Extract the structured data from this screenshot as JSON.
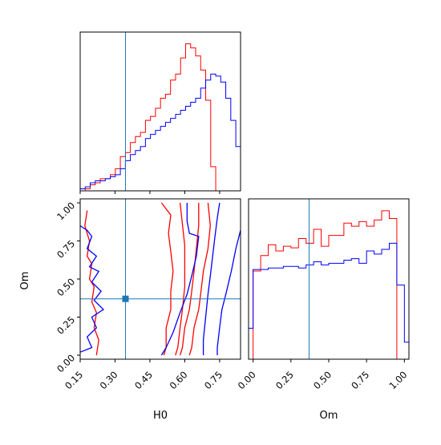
{
  "colors": {
    "red": "#ff0000",
    "blue": "#0000ff",
    "truth": "#1f77b4",
    "axis": "#000000"
  },
  "chart_data": [
    {
      "panel": "H0 marginal",
      "type": "histogram",
      "x_edges": [
        0.15,
        0.1716,
        0.1932,
        0.2148,
        0.2364,
        0.258,
        0.2796,
        0.3012,
        0.3228,
        0.3444,
        0.366,
        0.3876,
        0.4092,
        0.4308,
        0.4524,
        0.474,
        0.4956,
        0.5172,
        0.5388,
        0.5604,
        0.582,
        0.6036,
        0.6252,
        0.6468,
        0.6684,
        0.69,
        0.7116,
        0.7332,
        0.7548,
        0.7764,
        0.798,
        0.8196,
        0.8412,
        0.8628,
        0.8844,
        0.906
      ],
      "xlim": [
        0.15,
        0.84
      ],
      "truth": 0.345,
      "series": [
        {
          "color": "red",
          "counts": [
            0,
            1,
            3,
            4,
            6,
            6,
            8,
            11,
            17,
            19,
            24,
            27,
            29,
            35,
            37,
            41,
            46,
            48,
            55,
            58,
            66,
            73,
            71,
            67,
            60,
            45,
            12,
            0,
            0,
            0,
            0,
            0,
            0,
            0,
            0
          ]
        },
        {
          "color": "blue",
          "counts": [
            1,
            2,
            4,
            5,
            5,
            6,
            7,
            8,
            11,
            15,
            18,
            20,
            22,
            26,
            28,
            30,
            32,
            34,
            36,
            38,
            40,
            42,
            44,
            46,
            51,
            55,
            58,
            57,
            54,
            46,
            35,
            22,
            14,
            8,
            4
          ]
        }
      ]
    },
    {
      "panel": "Om vs H0 2D contours",
      "type": "contour",
      "xlabel": "H0",
      "ylabel": "Om",
      "xlim": [
        0.15,
        0.84
      ],
      "ylim": [
        0.0,
        1.0
      ],
      "xticks": [
        "0.15",
        "0.30",
        "0.45",
        "0.60",
        "0.75"
      ],
      "xtick_values": [
        0.15,
        0.3,
        0.45,
        0.6,
        0.75
      ],
      "yticks": [
        "0.00",
        "0.25",
        "0.50",
        "0.75",
        "1.00"
      ],
      "ytick_values": [
        0.0,
        0.25,
        0.5,
        0.75,
        1.0
      ],
      "truth": [
        0.345,
        0.37
      ],
      "contours": [
        {
          "color": "red",
          "points": [
            [
              0.5,
              1.0
            ],
            [
              0.54,
              0.92
            ],
            [
              0.53,
              0.8
            ],
            [
              0.54,
              0.68
            ],
            [
              0.55,
              0.55
            ],
            [
              0.54,
              0.42
            ],
            [
              0.54,
              0.3
            ],
            [
              0.52,
              0.18
            ],
            [
              0.52,
              0.05
            ],
            [
              0.51,
              0.0
            ]
          ]
        },
        {
          "color": "red",
          "points": [
            [
              0.58,
              1.0
            ],
            [
              0.59,
              0.86
            ],
            [
              0.6,
              0.72
            ],
            [
              0.6,
              0.58
            ],
            [
              0.6,
              0.45
            ],
            [
              0.59,
              0.3
            ],
            [
              0.58,
              0.18
            ],
            [
              0.57,
              0.05
            ],
            [
              0.56,
              0.0
            ]
          ]
        },
        {
          "color": "red",
          "points": [
            [
              0.66,
              1.0
            ],
            [
              0.66,
              0.85
            ],
            [
              0.65,
              0.7
            ],
            [
              0.64,
              0.55
            ],
            [
              0.63,
              0.42
            ],
            [
              0.62,
              0.3
            ],
            [
              0.6,
              0.18
            ],
            [
              0.59,
              0.05
            ],
            [
              0.58,
              0.0
            ]
          ]
        },
        {
          "color": "red",
          "points": [
            [
              0.7,
              1.0
            ],
            [
              0.71,
              0.85
            ],
            [
              0.7,
              0.7
            ],
            [
              0.68,
              0.55
            ],
            [
              0.67,
              0.42
            ],
            [
              0.66,
              0.3
            ],
            [
              0.64,
              0.18
            ],
            [
              0.63,
              0.05
            ],
            [
              0.62,
              0.0
            ]
          ]
        },
        {
          "color": "red",
          "points": [
            [
              0.18,
              0.95
            ],
            [
              0.17,
              0.85
            ],
            [
              0.19,
              0.75
            ],
            [
              0.18,
              0.65
            ],
            [
              0.2,
              0.6
            ],
            [
              0.19,
              0.5
            ],
            [
              0.21,
              0.45
            ],
            [
              0.2,
              0.35
            ],
            [
              0.22,
              0.28
            ],
            [
              0.21,
              0.18
            ],
            [
              0.23,
              0.1
            ],
            [
              0.22,
              0.0
            ]
          ]
        },
        {
          "color": "blue",
          "points": [
            [
              0.15,
              0.85
            ],
            [
              0.18,
              0.82
            ],
            [
              0.2,
              0.78
            ],
            [
              0.18,
              0.7
            ],
            [
              0.22,
              0.65
            ],
            [
              0.19,
              0.58
            ],
            [
              0.23,
              0.55
            ],
            [
              0.2,
              0.48
            ],
            [
              0.24,
              0.42
            ],
            [
              0.21,
              0.36
            ],
            [
              0.25,
              0.3
            ],
            [
              0.2,
              0.25
            ],
            [
              0.22,
              0.18
            ],
            [
              0.18,
              0.12
            ],
            [
              0.2,
              0.05
            ],
            [
              0.15,
              0.02
            ]
          ]
        },
        {
          "color": "blue",
          "points": [
            [
              0.61,
              1.0
            ],
            [
              0.61,
              0.88
            ],
            [
              0.62,
              0.8
            ],
            [
              0.66,
              0.78
            ],
            [
              0.65,
              0.65
            ],
            [
              0.63,
              0.52
            ],
            [
              0.61,
              0.4
            ],
            [
              0.58,
              0.28
            ],
            [
              0.55,
              0.15
            ],
            [
              0.52,
              0.05
            ],
            [
              0.5,
              0.0
            ]
          ]
        },
        {
          "color": "blue",
          "points": [
            [
              0.75,
              1.0
            ],
            [
              0.74,
              0.9
            ],
            [
              0.73,
              0.78
            ],
            [
              0.72,
              0.65
            ],
            [
              0.71,
              0.52
            ],
            [
              0.7,
              0.4
            ],
            [
              0.69,
              0.25
            ],
            [
              0.68,
              0.1
            ],
            [
              0.68,
              0.0
            ]
          ]
        },
        {
          "color": "blue",
          "points": [
            [
              0.84,
              0.82
            ],
            [
              0.82,
              0.7
            ],
            [
              0.8,
              0.55
            ],
            [
              0.78,
              0.42
            ],
            [
              0.76,
              0.3
            ],
            [
              0.75,
              0.18
            ],
            [
              0.74,
              0.05
            ],
            [
              0.74,
              0.0
            ]
          ]
        }
      ]
    },
    {
      "panel": "Om marginal",
      "type": "histogram",
      "xlabel": "Om",
      "xlim": [
        -0.03,
        1.03
      ],
      "xticks": [
        "0.00",
        "0.25",
        "0.50",
        "0.75",
        "1.00"
      ],
      "xtick_values": [
        0.0,
        0.25,
        0.5,
        0.75,
        1.0
      ],
      "truth": 0.37,
      "x_edges": [
        -0.03,
        0.0,
        0.05,
        0.1,
        0.15,
        0.2,
        0.25,
        0.3,
        0.35,
        0.4,
        0.45,
        0.5,
        0.55,
        0.6,
        0.65,
        0.7,
        0.75,
        0.8,
        0.85,
        0.9,
        0.95,
        1.0,
        1.03
      ],
      "series": [
        {
          "color": "red",
          "counts": [
            0,
            57,
            67,
            74,
            70,
            73,
            72,
            78,
            75,
            84,
            73,
            80,
            80,
            88,
            86,
            89,
            86,
            90,
            96,
            91,
            0,
            0
          ]
        },
        {
          "color": "blue",
          "counts": [
            20,
            58,
            58,
            59,
            59,
            60,
            60,
            59,
            61,
            63,
            61,
            62,
            62,
            64,
            65,
            62,
            70,
            68,
            71,
            75,
            48,
            11
          ]
        }
      ]
    }
  ]
}
